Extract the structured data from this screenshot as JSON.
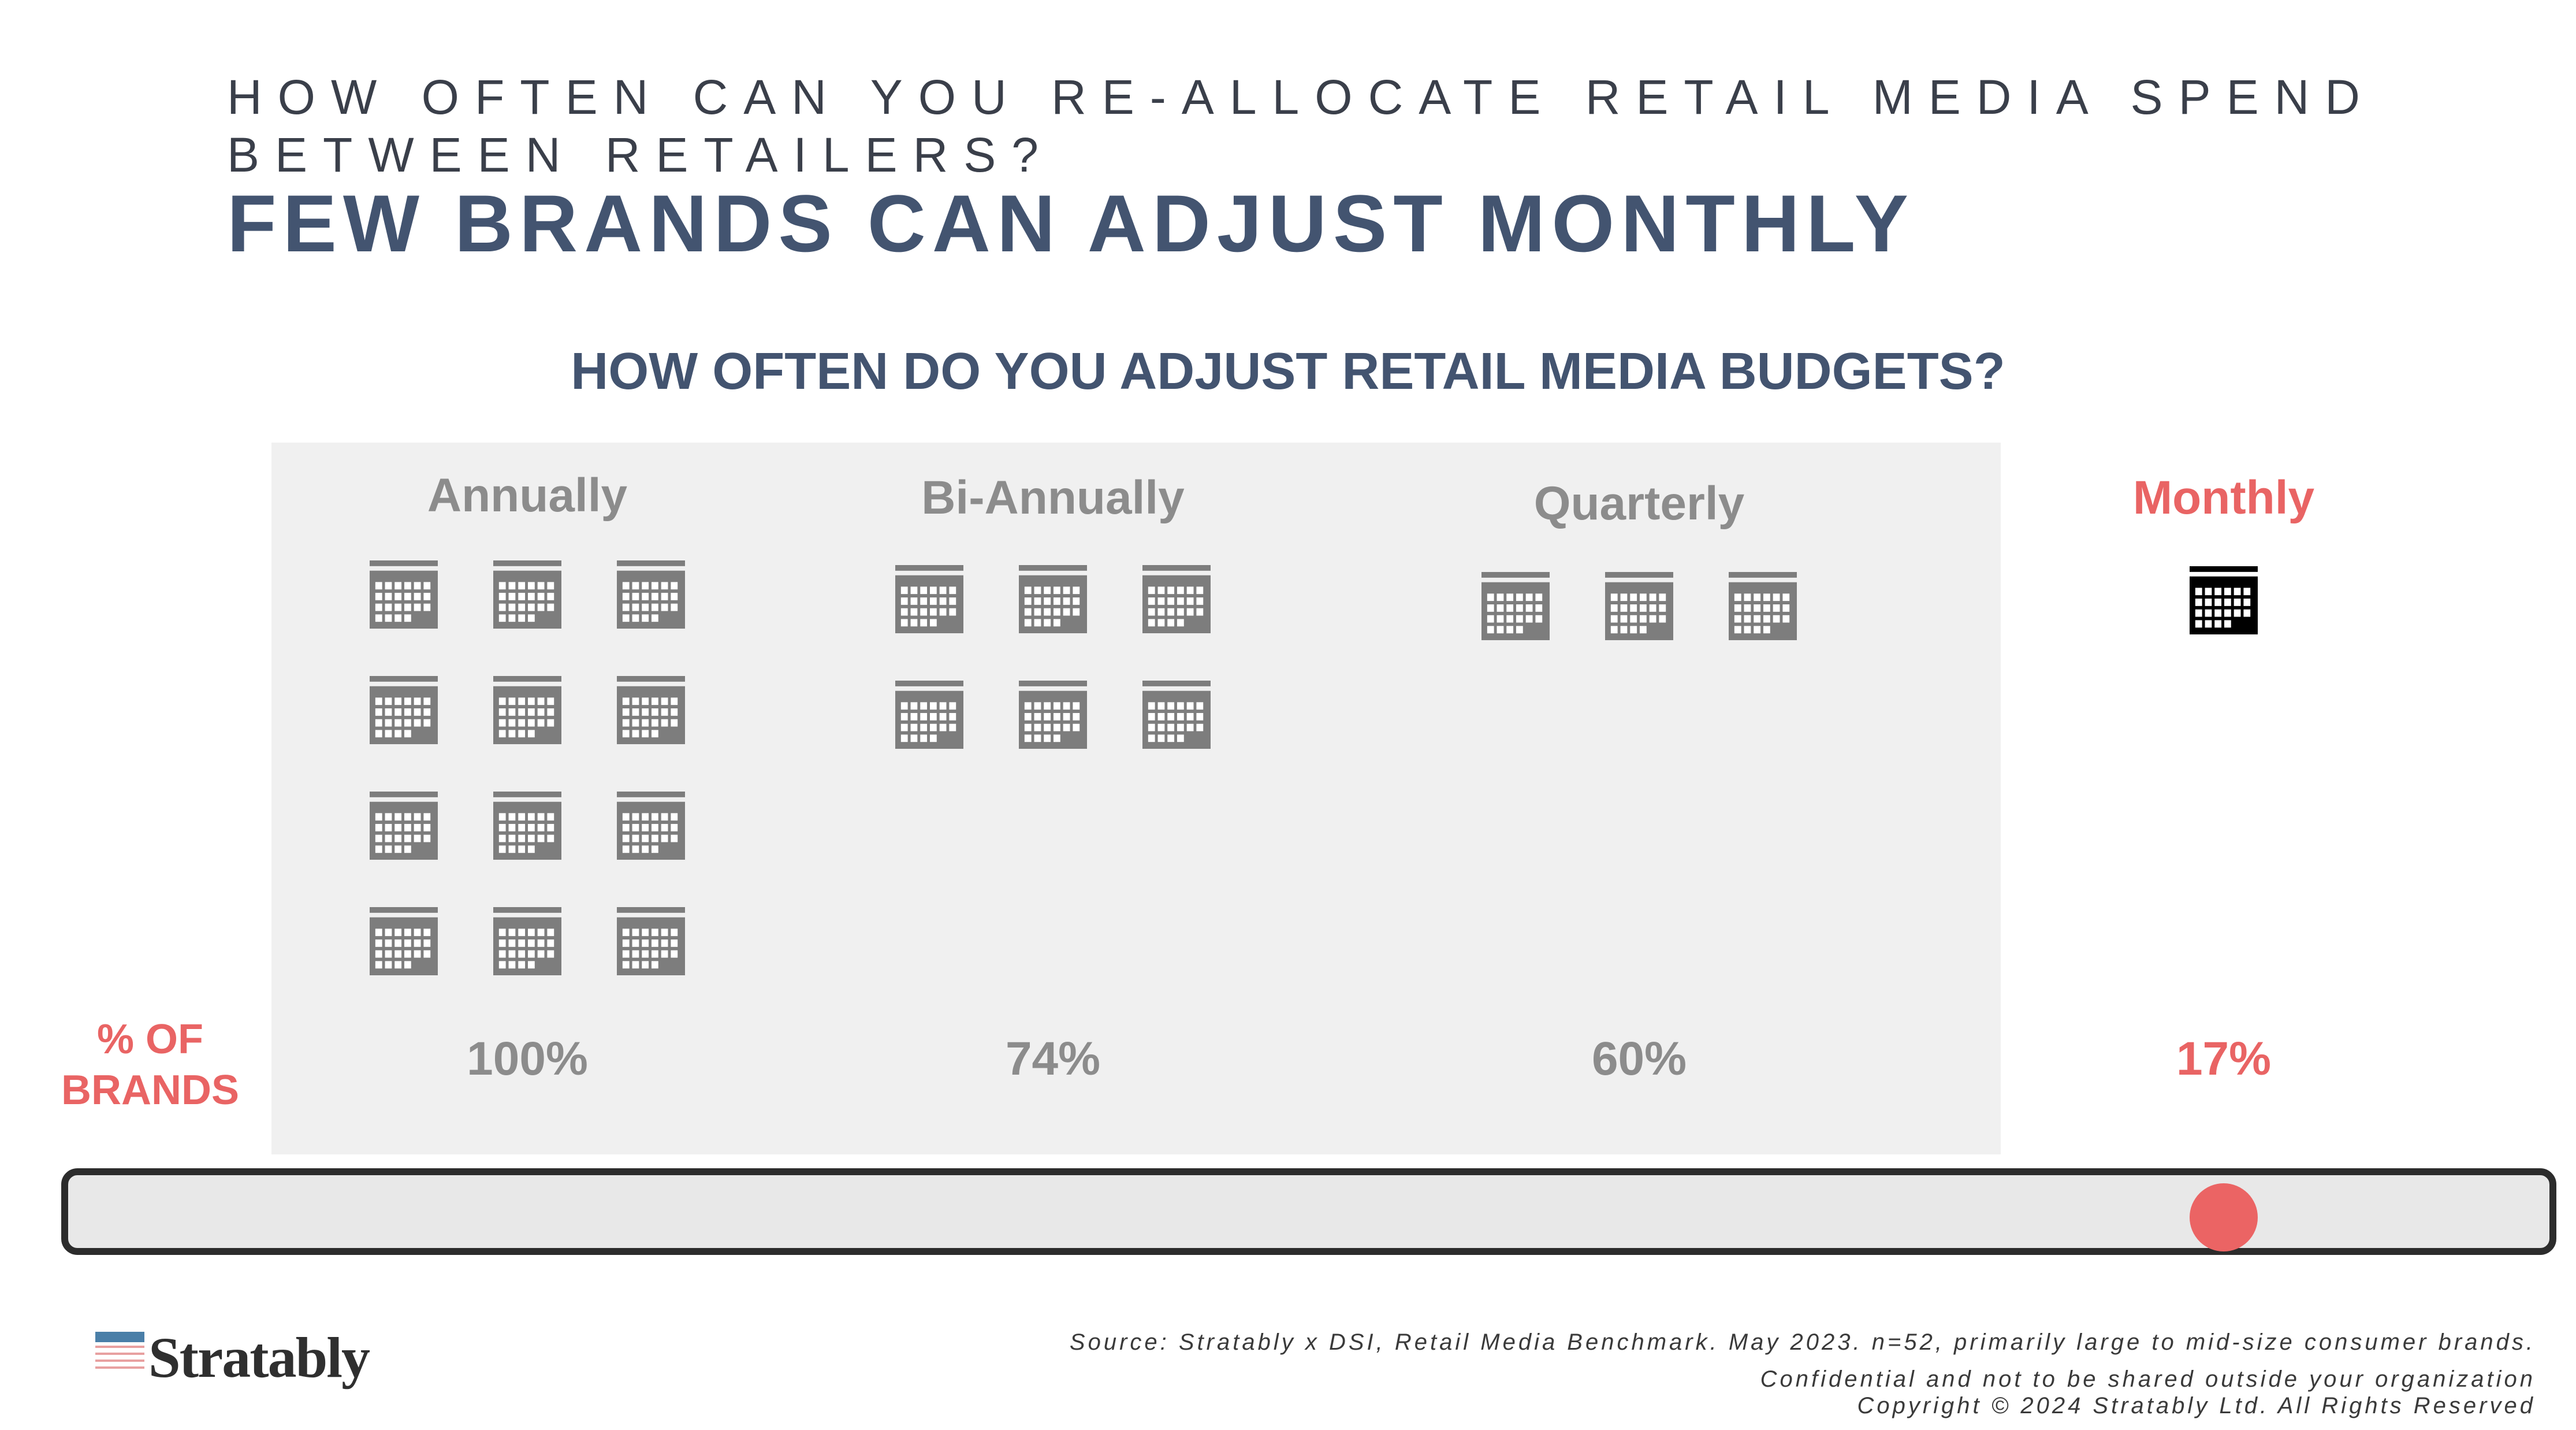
{
  "slide": {
    "kicker": "HOW OFTEN CAN YOU RE-ALLOCATE RETAIL MEDIA SPEND BETWEEN RETAILERS?",
    "headline": "FEW BRANDS CAN ADJUST MONTHLY",
    "row_label": "% OF BRANDS",
    "highlight_color": "#e96464",
    "muted_color": "#8c8c8c",
    "title_color": "#435470"
  },
  "chart_data": {
    "type": "pictogram",
    "title": "HOW OFTEN DO YOU ADJUST RETAIL MEDIA BUDGETS?",
    "unit": "% of brands",
    "icon": "calendar-icon",
    "categories": [
      "Annually",
      "Bi-Annually",
      "Quarterly",
      "Monthly"
    ],
    "values": [
      100,
      74,
      60,
      17
    ],
    "value_labels": [
      "100%",
      "74%",
      "60%",
      "17%"
    ],
    "icon_counts": [
      12,
      6,
      3,
      1
    ],
    "highlighted": "Monthly",
    "slider": {
      "selected": "Monthly"
    }
  },
  "logo": {
    "name": "Stratably"
  },
  "footer": {
    "source": "Source: Stratably x DSI, Retail Media Benchmark. May 2023. n=52, primarily large to mid-size consumer brands.",
    "confidential": "Confidential and not to be shared outside your organization",
    "copyright": "Copyright © 2024 Stratably Ltd. All Rights Reserved"
  }
}
